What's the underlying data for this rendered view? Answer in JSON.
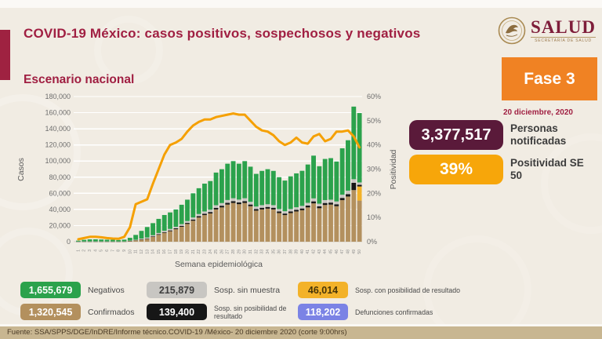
{
  "page": {
    "title": "COVID-19 México: casos positivos, sospechosos y negativos",
    "subtitle": "Escenario nacional",
    "footer": "Fuente: SSA/SPPS/DGE/InDRE/Informe técnico.COVID-19 /México- 20 diciembre 2020 (corte 9:00hrs)"
  },
  "logo": {
    "name": "SALUD",
    "sub": "SECRETARÍA DE SALUD"
  },
  "right_panel": {
    "fase": "Fase 3",
    "date": "20 diciembre, 2020",
    "stats": [
      {
        "value": "3,377,517",
        "label": "Personas notificadas",
        "color": "#5A1A3A",
        "text_color": "#FFFFFF"
      },
      {
        "value": "39%",
        "label": "Positividad SE 50",
        "color": "#F7A60A",
        "text_color": "#FFFFFF"
      }
    ]
  },
  "legend": {
    "items": [
      {
        "value": "1,655,679",
        "label": "Negativos",
        "color": "#2BA24C",
        "text_color": "#FFFFFF"
      },
      {
        "value": "215,879",
        "label": "Sosp. sin muestra",
        "color": "#C8C6C2",
        "text_color": "#3F3F3F"
      },
      {
        "value": "46,014",
        "label": "Sosp. con posibilidad de resultado",
        "color": "#F3B229",
        "text_color": "#463509"
      },
      {
        "value": "1,320,545",
        "label": "Confirmados",
        "color": "#B3905E",
        "text_color": "#FFFFFF"
      },
      {
        "value": "139,400",
        "label": "Sosp. sin posibilidad de resultado",
        "color": "#161616",
        "text_color": "#FFFFFF"
      },
      {
        "value": "118,202",
        "label": "Defunciones confirmadas",
        "color": "#7B83E5",
        "text_color": "#FFFFFF"
      }
    ]
  },
  "chart_data": {
    "type": "bar",
    "subtype": "stacked-bars-with-line-overlay",
    "title": "Escenario nacional",
    "xlabel": "Semana epidemiológica",
    "ylabel_left": "Casos",
    "ylabel_right": "Positividad",
    "ylim_left": [
      0,
      180000
    ],
    "ylim_right": [
      0,
      60
    ],
    "yticks_left": [
      "0",
      "20,000",
      "40,000",
      "60,000",
      "80,000",
      "100,000",
      "120,000",
      "140,000",
      "160,000",
      "180,000"
    ],
    "yticks_right": [
      "0%",
      "10%",
      "20%",
      "30%",
      "40%",
      "50%",
      "60%"
    ],
    "grid": "horizontal",
    "x": [
      1,
      2,
      3,
      4,
      5,
      6,
      7,
      8,
      9,
      10,
      11,
      12,
      13,
      14,
      15,
      16,
      17,
      18,
      19,
      20,
      21,
      22,
      23,
      24,
      25,
      26,
      27,
      28,
      29,
      30,
      31,
      32,
      33,
      34,
      35,
      36,
      37,
      38,
      39,
      40,
      41,
      42,
      43,
      44,
      45,
      46,
      47,
      48,
      49,
      50
    ],
    "series": [
      {
        "name": "Confirmados",
        "color": "#B3905E",
        "values": [
          20,
          50,
          50,
          60,
          60,
          50,
          50,
          50,
          100,
          800,
          1500,
          2500,
          3500,
          6000,
          8500,
          11000,
          13000,
          15500,
          18500,
          22000,
          26000,
          30000,
          33000,
          35000,
          40000,
          42500,
          46000,
          48000,
          46500,
          48000,
          44000,
          38500,
          40000,
          41000,
          40000,
          35500,
          33000,
          35500,
          37500,
          39000,
          42500,
          47500,
          41500,
          45500,
          46000,
          44000,
          51500,
          56000,
          64000,
          51000
        ]
      },
      {
        "name": "Sosp. con posibilidad de resultado",
        "color": "#F3B229",
        "values": [
          0,
          0,
          0,
          0,
          0,
          0,
          0,
          0,
          0,
          0,
          0,
          0,
          0,
          0,
          0,
          0,
          0,
          0,
          0,
          0,
          0,
          0,
          0,
          0,
          0,
          0,
          0,
          0,
          0,
          0,
          0,
          0,
          0,
          0,
          0,
          0,
          0,
          0,
          0,
          0,
          0,
          0,
          0,
          0,
          0,
          0,
          0,
          0,
          0,
          17500
        ]
      },
      {
        "name": "Sosp. sin posibilidad de resultado",
        "color": "#161616",
        "values": [
          30,
          50,
          50,
          60,
          60,
          50,
          50,
          50,
          60,
          150,
          300,
          500,
          600,
          700,
          800,
          900,
          1000,
          1100,
          1200,
          1300,
          1500,
          1600,
          1700,
          1800,
          2000,
          2100,
          2200,
          2300,
          2200,
          2300,
          2100,
          2000,
          2100,
          2100,
          2100,
          2000,
          1900,
          2000,
          2100,
          2200,
          2300,
          2500,
          2300,
          2500,
          2500,
          2400,
          2800,
          3000,
          9000,
          2000
        ]
      },
      {
        "name": "Sosp. sin muestra",
        "color": "#C8C6C2",
        "values": [
          150,
          200,
          250,
          250,
          220,
          200,
          200,
          180,
          200,
          350,
          600,
          900,
          1100,
          1300,
          1500,
          1700,
          1800,
          1900,
          2100,
          2300,
          2500,
          2700,
          2800,
          2900,
          3200,
          3300,
          3500,
          3600,
          3500,
          3600,
          3400,
          3100,
          3200,
          3300,
          3200,
          3000,
          2900,
          3000,
          3100,
          3200,
          3400,
          3700,
          3300,
          3600,
          3600,
          3500,
          4000,
          4300,
          4500,
          3000
        ]
      },
      {
        "name": "Negativos",
        "color": "#2BA24C",
        "values": [
          1100,
          2000,
          2550,
          2600,
          2400,
          2200,
          2100,
          1800,
          2200,
          3500,
          6000,
          9500,
          13000,
          15000,
          17500,
          19500,
          20500,
          21500,
          24000,
          26500,
          30000,
          32000,
          34500,
          35500,
          40500,
          42000,
          45000,
          46000,
          44500,
          46000,
          43500,
          40500,
          42500,
          43500,
          42500,
          39500,
          38000,
          40500,
          42000,
          43500,
          47500,
          53000,
          46500,
          51000,
          51500,
          49500,
          57500,
          62500,
          90000,
          86000
        ]
      }
    ],
    "line": {
      "name": "Positividad",
      "color": "#F5A002",
      "values_percent": [
        1,
        1.5,
        2,
        2,
        1.8,
        1.5,
        1.3,
        1.2,
        2,
        6,
        15.5,
        16.5,
        17.5,
        24,
        30,
        36,
        40,
        41,
        42.5,
        45.5,
        48,
        49.5,
        50.5,
        50.5,
        51.5,
        52,
        52.5,
        53,
        52.5,
        52.5,
        50,
        47.5,
        46,
        45.5,
        44,
        41.5,
        40,
        41,
        43,
        41,
        40.5,
        43.5,
        44.5,
        41.5,
        42.5,
        45.5,
        45.5,
        46,
        43.5,
        39
      ]
    }
  }
}
